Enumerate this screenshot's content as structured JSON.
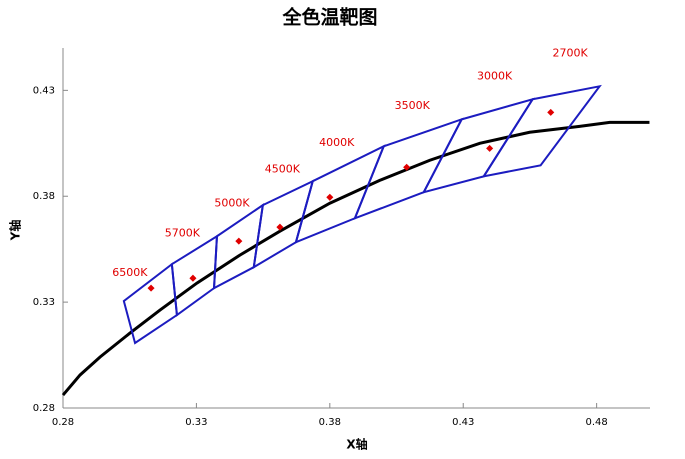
{
  "chart_data": {
    "type": "line",
    "title": "全色温靶图",
    "x_label": "X轴",
    "y_label": "Y轴",
    "xlim": [
      0.28,
      0.5
    ],
    "ylim": [
      0.28,
      0.45
    ],
    "xticks": [
      0.28,
      0.33,
      0.38,
      0.43,
      0.48
    ],
    "yticks": [
      0.28,
      0.33,
      0.38,
      0.43
    ],
    "locus": {
      "color": "#000000",
      "x": [
        0.28,
        0.2864,
        0.2939,
        0.3051,
        0.3163,
        0.3302,
        0.3463,
        0.3613,
        0.38,
        0.3987,
        0.4175,
        0.4362,
        0.4549,
        0.4736,
        0.4849,
        0.4998
      ],
      "y": [
        0.2861,
        0.2956,
        0.3041,
        0.3154,
        0.3262,
        0.339,
        0.3522,
        0.3635,
        0.3767,
        0.3875,
        0.397,
        0.405,
        0.4102,
        0.413,
        0.4149,
        0.4149
      ]
    },
    "target_color": "#1c1cc0",
    "center_color": "#e00000",
    "label_color": "#e00000",
    "targets": [
      {
        "label": "6500K",
        "x": [
          0.3028,
          0.3208,
          0.3227,
          0.307
        ],
        "y": [
          0.3305,
          0.3479,
          0.3239,
          0.3107
        ],
        "center_x": 0.313,
        "center_y": 0.3366
      },
      {
        "label": "5700K",
        "x": [
          0.3208,
          0.3377,
          0.3366,
          0.3227
        ],
        "y": [
          0.3479,
          0.3611,
          0.3366,
          0.3239
        ],
        "center_x": 0.3287,
        "center_y": 0.3413
      },
      {
        "label": "5000K",
        "x": [
          0.3377,
          0.3549,
          0.3515,
          0.3366
        ],
        "y": [
          0.3611,
          0.3758,
          0.3465,
          0.3366
        ],
        "center_x": 0.3459,
        "center_y": 0.3588
      },
      {
        "label": "4500K",
        "x": [
          0.3549,
          0.3736,
          0.3673,
          0.3515
        ],
        "y": [
          0.3758,
          0.3871,
          0.3583,
          0.3465
        ],
        "center_x": 0.3613,
        "center_y": 0.3654
      },
      {
        "label": "4000K",
        "x": [
          0.3736,
          0.4002,
          0.3894,
          0.3673
        ],
        "y": [
          0.3871,
          0.4036,
          0.3696,
          0.3583
        ],
        "center_x": 0.38,
        "center_y": 0.3795
      },
      {
        "label": "3500K",
        "x": [
          0.4002,
          0.4294,
          0.4152,
          0.3894
        ],
        "y": [
          0.4036,
          0.4163,
          0.3819,
          0.3696
        ],
        "center_x": 0.4088,
        "center_y": 0.3937
      },
      {
        "label": "3000K",
        "x": [
          0.4294,
          0.456,
          0.4377,
          0.4152
        ],
        "y": [
          0.4163,
          0.4258,
          0.3894,
          0.3819
        ],
        "center_x": 0.4399,
        "center_y": 0.4026
      },
      {
        "label": "2700K",
        "x": [
          0.456,
          0.4811,
          0.459,
          0.4377
        ],
        "y": [
          0.4258,
          0.4319,
          0.3946,
          0.3894
        ],
        "center_x": 0.4628,
        "center_y": 0.4196
      }
    ]
  }
}
